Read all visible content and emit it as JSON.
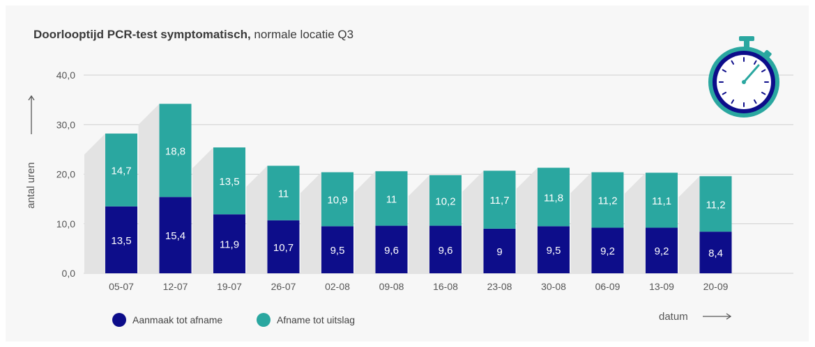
{
  "title_bold": "Doorlooptijd PCR-test symptomatisch,",
  "title_normal": " normale locatie Q3",
  "colors": {
    "series1": "#0d0d8a",
    "series2": "#2aa7a0",
    "shadow": "#e3e3e3",
    "grid": "#cfcfcf"
  },
  "icon": "stopwatch-icon",
  "chart_data": {
    "type": "bar",
    "stacked": true,
    "categories": [
      "05-07",
      "12-07",
      "19-07",
      "26-07",
      "02-08",
      "09-08",
      "16-08",
      "23-08",
      "30-08",
      "06-09",
      "13-09",
      "20-09"
    ],
    "series": [
      {
        "name": "Aanmaak tot afname",
        "values": [
          13.5,
          15.4,
          11.9,
          10.7,
          9.5,
          9.6,
          9.6,
          9,
          9.5,
          9.2,
          9.2,
          8.4
        ],
        "labels": [
          "13,5",
          "15,4",
          "11,9",
          "10,7",
          "9,5",
          "9,6",
          "9,6",
          "9",
          "9,5",
          "9,2",
          "9,2",
          "8,4"
        ]
      },
      {
        "name": "Afname tot uitslag",
        "values": [
          14.7,
          18.8,
          13.5,
          11,
          10.9,
          11,
          10.2,
          11.7,
          11.8,
          11.2,
          11.1,
          11.2
        ],
        "labels": [
          "14,7",
          "18,8",
          "13,5",
          "11",
          "10,9",
          "11",
          "10,2",
          "11,7",
          "11,8",
          "11,2",
          "11,1",
          "11,2"
        ]
      }
    ],
    "ylim": [
      0,
      40
    ],
    "yticks": [
      0,
      10,
      20,
      30,
      40
    ],
    "ytick_labels": [
      "0,0",
      "10,0",
      "20,0",
      "30,0",
      "40,0"
    ],
    "ylabel": "antal uren",
    "xlabel": "datum",
    "grid": true,
    "legend": "bottom-left"
  }
}
